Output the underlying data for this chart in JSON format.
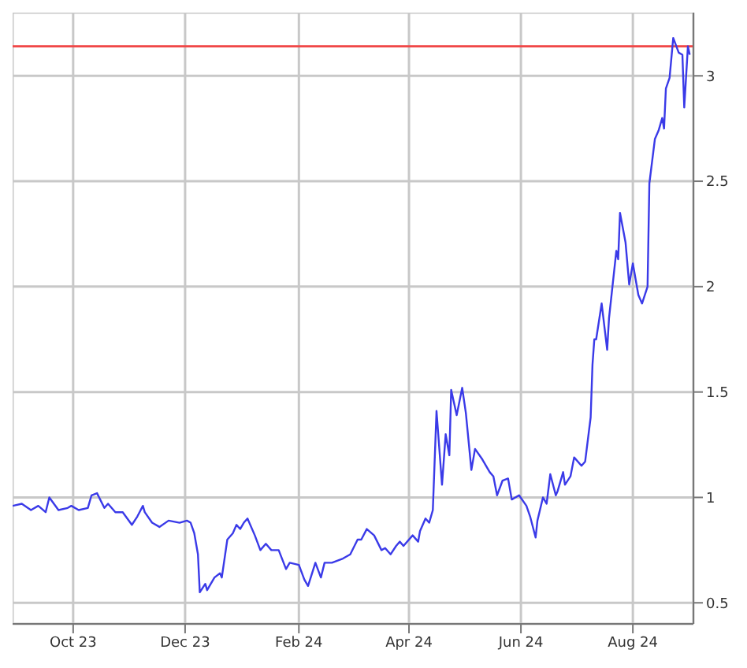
{
  "chart_data": {
    "type": "line",
    "x": [
      "2023-08-29",
      "2023-09-03",
      "2023-09-08",
      "2023-09-12",
      "2023-09-16",
      "2023-09-18",
      "2023-09-23",
      "2023-09-28",
      "2023-09-30",
      "2023-10-04",
      "2023-10-09",
      "2023-10-11",
      "2023-10-14",
      "2023-10-18",
      "2023-10-20",
      "2023-10-24",
      "2023-10-28",
      "2023-11-02",
      "2023-11-05",
      "2023-11-08",
      "2023-11-09",
      "2023-11-13",
      "2023-11-17",
      "2023-11-22",
      "2023-11-28",
      "2023-12-02",
      "2023-12-04",
      "2023-12-06",
      "2023-12-08",
      "2023-12-09",
      "2023-12-12",
      "2023-12-13",
      "2023-12-17",
      "2023-12-20",
      "2023-12-21",
      "2023-12-24",
      "2023-12-27",
      "2023-12-29",
      "2023-12-31",
      "2024-01-02",
      "2024-01-04",
      "2024-01-08",
      "2024-01-11",
      "2024-01-14",
      "2024-01-17",
      "2024-01-21",
      "2024-01-25",
      "2024-01-27",
      "2024-02-01",
      "2024-02-04",
      "2024-02-06",
      "2024-02-10",
      "2024-02-13",
      "2024-02-15",
      "2024-02-19",
      "2024-02-25",
      "2024-02-29",
      "2024-03-04",
      "2024-03-06",
      "2024-03-09",
      "2024-03-13",
      "2024-03-17",
      "2024-03-19",
      "2024-03-22",
      "2024-03-25",
      "2024-03-27",
      "2024-03-29",
      "2024-04-03",
      "2024-04-06",
      "2024-04-07",
      "2024-04-10",
      "2024-04-12",
      "2024-04-14",
      "2024-04-16",
      "2024-04-19",
      "2024-04-21",
      "2024-04-23",
      "2024-04-24",
      "2024-04-27",
      "2024-04-30",
      "2024-05-02",
      "2024-05-05",
      "2024-05-07",
      "2024-05-11",
      "2024-05-15",
      "2024-05-17",
      "2024-05-19",
      "2024-05-22",
      "2024-05-25",
      "2024-05-27",
      "2024-05-31",
      "2024-06-04",
      "2024-06-06",
      "2024-06-09",
      "2024-06-10",
      "2024-06-13",
      "2024-06-15",
      "2024-06-17",
      "2024-06-20",
      "2024-06-21",
      "2024-06-24",
      "2024-06-25",
      "2024-06-28",
      "2024-06-30",
      "2024-07-04",
      "2024-07-06",
      "2024-07-09",
      "2024-07-10",
      "2024-07-11",
      "2024-07-12",
      "2024-07-15",
      "2024-07-18",
      "2024-07-19",
      "2024-07-23",
      "2024-07-24",
      "2024-07-25",
      "2024-07-28",
      "2024-07-30",
      "2024-08-01",
      "2024-08-04",
      "2024-08-06",
      "2024-08-09",
      "2024-08-10",
      "2024-08-13",
      "2024-08-15",
      "2024-08-17",
      "2024-08-18",
      "2024-08-19",
      "2024-08-21",
      "2024-08-23",
      "2024-08-26",
      "2024-08-28",
      "2024-08-29",
      "2024-08-31",
      "2024-09-01"
    ],
    "series": [
      {
        "color": "#3a3ae8",
        "values": [
          0.96,
          0.97,
          0.94,
          0.96,
          0.93,
          1.0,
          0.94,
          0.95,
          0.96,
          0.94,
          0.95,
          1.01,
          1.02,
          0.95,
          0.97,
          0.93,
          0.93,
          0.87,
          0.91,
          0.96,
          0.93,
          0.88,
          0.86,
          0.89,
          0.88,
          0.89,
          0.88,
          0.83,
          0.73,
          0.55,
          0.59,
          0.56,
          0.62,
          0.64,
          0.62,
          0.8,
          0.83,
          0.87,
          0.85,
          0.88,
          0.9,
          0.82,
          0.75,
          0.78,
          0.75,
          0.75,
          0.66,
          0.69,
          0.68,
          0.61,
          0.58,
          0.69,
          0.62,
          0.69,
          0.69,
          0.71,
          0.73,
          0.8,
          0.8,
          0.85,
          0.82,
          0.75,
          0.76,
          0.73,
          0.77,
          0.79,
          0.77,
          0.82,
          0.79,
          0.84,
          0.9,
          0.88,
          0.94,
          1.41,
          1.06,
          1.3,
          1.2,
          1.51,
          1.39,
          1.52,
          1.4,
          1.13,
          1.23,
          1.18,
          1.12,
          1.1,
          1.01,
          1.08,
          1.09,
          0.99,
          1.01,
          0.96,
          0.91,
          0.81,
          0.89,
          1.0,
          0.97,
          1.11,
          1.01,
          1.03,
          1.12,
          1.06,
          1.1,
          1.19,
          1.15,
          1.17,
          1.38,
          1.63,
          1.75,
          1.75,
          1.92,
          1.7,
          1.85,
          2.17,
          2.13,
          2.35,
          2.21,
          2.01,
          2.11,
          1.96,
          1.92,
          2.0,
          2.49,
          2.7,
          2.74,
          2.8,
          2.75,
          2.94,
          2.99,
          3.18,
          3.11,
          3.1,
          2.85,
          3.14,
          3.1
        ]
      }
    ],
    "xlim": [
      "2023-08-29",
      "2024-09-03"
    ],
    "xticks": [
      {
        "value": "2023-10-01",
        "label": "Oct 23"
      },
      {
        "value": "2023-12-01",
        "label": "Dec 23"
      },
      {
        "value": "2024-02-01",
        "label": "Feb 24"
      },
      {
        "value": "2024-04-01",
        "label": "Apr 24"
      },
      {
        "value": "2024-06-01",
        "label": "Jun 24"
      },
      {
        "value": "2024-08-01",
        "label": "Aug 24"
      }
    ],
    "ylim": [
      0.4,
      3.3
    ],
    "yticks": [
      0.5,
      1,
      1.5,
      2,
      2.5,
      3
    ],
    "ref_lines": [
      {
        "axis": "y",
        "value": 3.14,
        "color": "#f04848"
      }
    ],
    "grid": true,
    "line_style": "solid",
    "marker": "none"
  }
}
